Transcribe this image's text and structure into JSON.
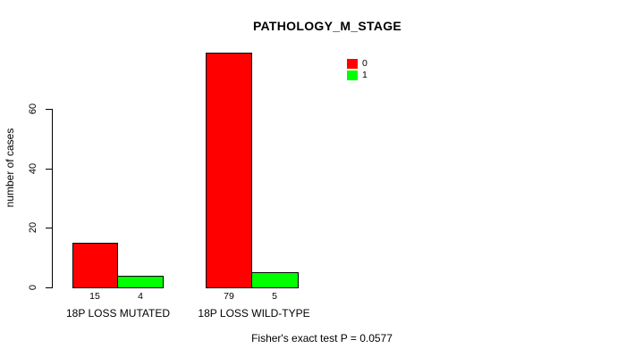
{
  "chart_data": {
    "type": "bar",
    "title": "PATHOLOGY_M_STAGE",
    "xlabel": "",
    "ylabel": "number of cases",
    "categories": [
      "18P LOSS MUTATED",
      "18P LOSS WILD-TYPE"
    ],
    "series": [
      {
        "name": "0",
        "color": "#ff0000",
        "values": [
          15,
          79
        ]
      },
      {
        "name": "1",
        "color": "#00ff00",
        "values": [
          4,
          5
        ]
      }
    ],
    "yticks": [
      0,
      20,
      40,
      60
    ],
    "ylim": [
      0,
      79
    ],
    "grid": false,
    "legend_position": "top-right",
    "annotation": "Fisher's exact test P = 0.0577",
    "bar_border_color": "#000000",
    "background_color": "#ffffff"
  }
}
